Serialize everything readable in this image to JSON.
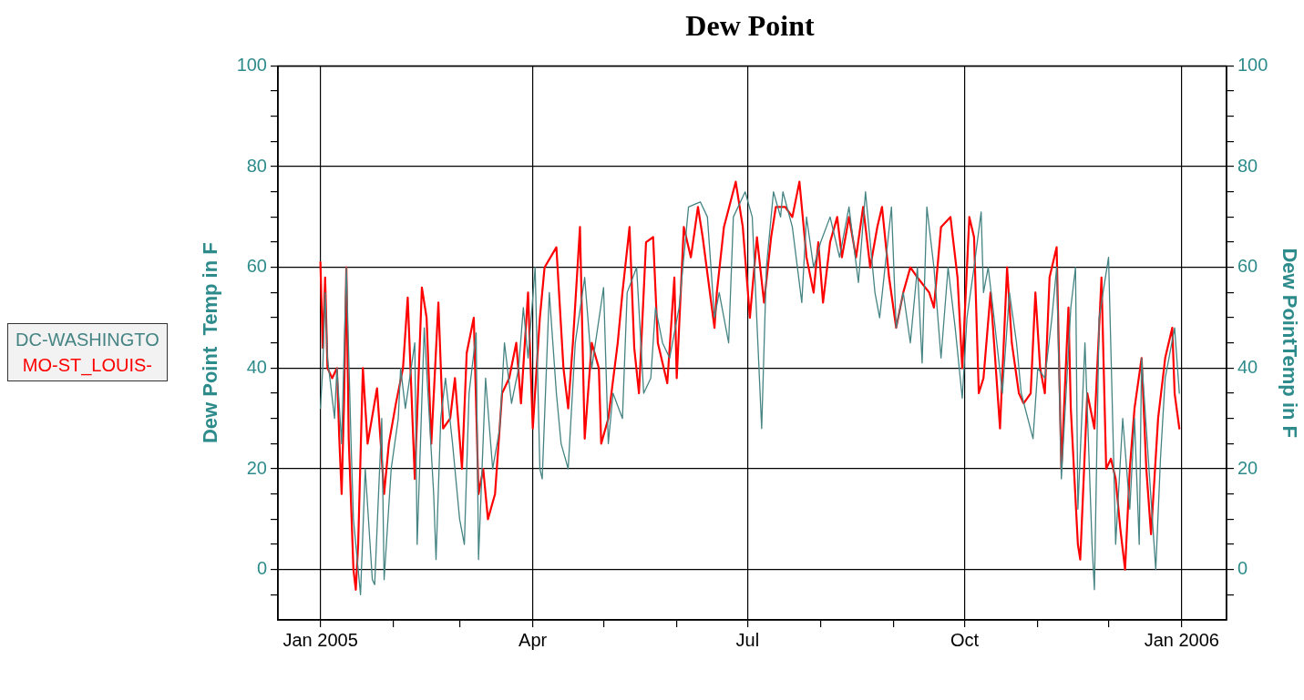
{
  "chart_data": {
    "type": "line",
    "title": "Dew Point",
    "ylabel": "Dew Point  Temp in F",
    "y2label": "Dew PointTemp in F",
    "xlim": [
      "2004-12-14",
      "2006-01-20"
    ],
    "xticks": [
      {
        "value": "2005-01-01",
        "label": "Jan 2005"
      },
      {
        "value": "2005-02-01",
        "label": null
      },
      {
        "value": "2005-03-01",
        "label": null
      },
      {
        "value": "2005-04-01",
        "label": "Apr"
      },
      {
        "value": "2005-05-01",
        "label": null
      },
      {
        "value": "2005-06-01",
        "label": null
      },
      {
        "value": "2005-07-01",
        "label": "Jul"
      },
      {
        "value": "2005-08-01",
        "label": null
      },
      {
        "value": "2005-09-01",
        "label": null
      },
      {
        "value": "2005-10-01",
        "label": "Oct"
      },
      {
        "value": "2005-11-01",
        "label": null
      },
      {
        "value": "2005-12-01",
        "label": null
      },
      {
        "value": "2006-01-01",
        "label": "Jan 2006"
      }
    ],
    "ylim": [
      -10,
      100
    ],
    "yticks": [
      {
        "value": -5,
        "label": null
      },
      0,
      {
        "value": 5,
        "label": null
      },
      {
        "value": 10,
        "label": null
      },
      {
        "value": 15,
        "label": null
      },
      20,
      {
        "value": 25,
        "label": null
      },
      {
        "value": 30,
        "label": null
      },
      {
        "value": 35,
        "label": null
      },
      40,
      {
        "value": 45,
        "label": null
      },
      {
        "value": 50,
        "label": null
      },
      {
        "value": 55,
        "label": null
      },
      60,
      {
        "value": 65,
        "label": null
      },
      {
        "value": 70,
        "label": null
      },
      {
        "value": 75,
        "label": null
      },
      80,
      {
        "value": 85,
        "label": null
      },
      {
        "value": 90,
        "label": null
      },
      {
        "value": 95,
        "label": null
      },
      100
    ],
    "y2lim": [
      -10,
      100
    ],
    "y2ticks": [
      {
        "value": -5,
        "label": null
      },
      0,
      {
        "value": 5,
        "label": null
      },
      {
        "value": 10,
        "label": null
      },
      {
        "value": 15,
        "label": null
      },
      20,
      {
        "value": 25,
        "label": null
      },
      {
        "value": 30,
        "label": null
      },
      {
        "value": 35,
        "label": null
      },
      40,
      {
        "value": 45,
        "label": null
      },
      {
        "value": 50,
        "label": null
      },
      {
        "value": 55,
        "label": null
      },
      60,
      {
        "value": 65,
        "label": null
      },
      {
        "value": 70,
        "label": null
      },
      {
        "value": 75,
        "label": null
      },
      80,
      {
        "value": 85,
        "label": null
      },
      {
        "value": 90,
        "label": null
      },
      {
        "value": 95,
        "label": null
      },
      100
    ],
    "grid": true,
    "legend": "left",
    "marker": "none",
    "series": [
      {
        "name": "DC-WASHINGTO",
        "color": "#468484",
        "x": [
          "2005-01-01",
          "2005-01-02",
          "2005-01-03",
          "2005-01-04",
          "2005-01-07",
          "2005-01-08",
          "2005-01-10",
          "2005-01-12",
          "2005-01-14",
          "2005-01-15",
          "2005-01-18",
          "2005-01-20",
          "2005-01-23",
          "2005-01-24",
          "2005-01-27",
          "2005-01-28",
          "2005-01-31",
          "2005-02-03",
          "2005-02-04",
          "2005-02-06",
          "2005-02-10",
          "2005-02-11",
          "2005-02-14",
          "2005-02-18",
          "2005-02-19",
          "2005-02-21",
          "2005-02-23",
          "2005-02-26",
          "2005-03-01",
          "2005-03-03",
          "2005-03-05",
          "2005-03-08",
          "2005-03-09",
          "2005-03-12",
          "2005-03-15",
          "2005-03-18",
          "2005-03-20",
          "2005-03-23",
          "2005-03-26",
          "2005-03-28",
          "2005-03-30",
          "2005-04-02",
          "2005-04-04",
          "2005-04-05",
          "2005-04-08",
          "2005-04-11",
          "2005-04-13",
          "2005-04-16",
          "2005-04-19",
          "2005-04-23",
          "2005-04-26",
          "2005-05-01",
          "2005-05-03",
          "2005-05-05",
          "2005-05-09",
          "2005-05-11",
          "2005-05-15",
          "2005-05-18",
          "2005-05-21",
          "2005-05-23",
          "2005-05-26",
          "2005-05-29",
          "2005-06-02",
          "2005-06-06",
          "2005-06-11",
          "2005-06-14",
          "2005-06-17",
          "2005-06-19",
          "2005-06-23",
          "2005-06-25",
          "2005-06-30",
          "2005-07-03",
          "2005-07-07",
          "2005-07-09",
          "2005-07-12",
          "2005-07-15",
          "2005-07-16",
          "2005-07-20",
          "2005-07-24",
          "2005-07-26",
          "2005-07-29",
          "2005-08-01",
          "2005-08-05",
          "2005-08-09",
          "2005-08-13",
          "2005-08-17",
          "2005-08-20",
          "2005-08-24",
          "2005-08-26",
          "2005-08-31",
          "2005-09-02",
          "2005-09-05",
          "2005-09-08",
          "2005-09-11",
          "2005-09-13",
          "2005-09-15",
          "2005-09-18",
          "2005-09-21",
          "2005-09-24",
          "2005-09-27",
          "2005-09-30",
          "2005-10-02",
          "2005-10-05",
          "2005-10-08",
          "2005-10-09",
          "2005-10-11",
          "2005-10-13",
          "2005-10-17",
          "2005-10-20",
          "2005-10-23",
          "2005-10-25",
          "2005-10-30",
          "2005-11-01",
          "2005-11-04",
          "2005-11-07",
          "2005-11-09",
          "2005-11-11",
          "2005-11-15",
          "2005-11-17",
          "2005-11-18",
          "2005-11-21",
          "2005-11-24",
          "2005-11-25",
          "2005-11-27",
          "2005-12-01",
          "2005-12-03",
          "2005-12-04",
          "2005-12-07",
          "2005-12-10",
          "2005-12-12",
          "2005-12-14",
          "2005-12-15",
          "2005-12-17",
          "2005-12-21",
          "2005-12-23",
          "2005-12-25",
          "2005-12-29",
          "2005-12-31"
        ],
        "values": [
          32,
          40,
          55,
          42,
          30,
          40,
          25,
          60,
          25,
          10,
          -5,
          20,
          -2,
          -3,
          30,
          -2,
          20,
          30,
          40,
          32,
          45,
          5,
          48,
          15,
          2,
          30,
          38,
          25,
          10,
          5,
          35,
          47,
          2,
          38,
          20,
          28,
          45,
          33,
          40,
          52,
          42,
          60,
          20,
          18,
          55,
          35,
          25,
          20,
          45,
          58,
          40,
          56,
          25,
          35,
          30,
          55,
          60,
          35,
          38,
          52,
          45,
          42,
          52,
          72,
          73,
          70,
          50,
          55,
          45,
          70,
          75,
          70,
          28,
          60,
          75,
          70,
          75,
          68,
          53,
          70,
          60,
          65,
          70,
          62,
          72,
          57,
          75,
          55,
          50,
          72,
          48,
          55,
          45,
          60,
          41,
          72,
          60,
          42,
          60,
          48,
          34,
          50,
          60,
          71,
          55,
          60,
          52,
          35,
          55,
          45,
          35,
          26,
          40,
          38,
          50,
          60,
          18,
          52,
          60,
          12,
          45,
          5,
          -4,
          50,
          62,
          25,
          5,
          30,
          12,
          30,
          5,
          42,
          28,
          0,
          22,
          38,
          48,
          35
        ]
      },
      {
        "name": "MO-ST_LOUIS-",
        "color": "#ff0000",
        "x": [
          "2005-01-01",
          "2005-01-02",
          "2005-01-03",
          "2005-01-04",
          "2005-01-06",
          "2005-01-08",
          "2005-01-09",
          "2005-01-10",
          "2005-01-11",
          "2005-01-12",
          "2005-01-13",
          "2005-01-15",
          "2005-01-16",
          "2005-01-17",
          "2005-01-19",
          "2005-01-21",
          "2005-01-25",
          "2005-01-28",
          "2005-01-30",
          "2005-02-02",
          "2005-02-05",
          "2005-02-07",
          "2005-02-10",
          "2005-02-13",
          "2005-02-15",
          "2005-02-17",
          "2005-02-20",
          "2005-02-22",
          "2005-02-25",
          "2005-02-27",
          "2005-03-02",
          "2005-03-04",
          "2005-03-07",
          "2005-03-09",
          "2005-03-11",
          "2005-03-13",
          "2005-03-16",
          "2005-03-19",
          "2005-03-22",
          "2005-03-25",
          "2005-03-27",
          "2005-03-30",
          "2005-04-01",
          "2005-04-04",
          "2005-04-06",
          "2005-04-11",
          "2005-04-14",
          "2005-04-16",
          "2005-04-18",
          "2005-04-21",
          "2005-04-23",
          "2005-04-26",
          "2005-04-29",
          "2005-04-30",
          "2005-05-03",
          "2005-05-07",
          "2005-05-09",
          "2005-05-12",
          "2005-05-14",
          "2005-05-16",
          "2005-05-19",
          "2005-05-22",
          "2005-05-24",
          "2005-05-28",
          "2005-05-31",
          "2005-06-01",
          "2005-06-03",
          "2005-06-04",
          "2005-06-07",
          "2005-06-10",
          "2005-06-12",
          "2005-06-17",
          "2005-06-18",
          "2005-06-21",
          "2005-06-26",
          "2005-06-29",
          "2005-07-02",
          "2005-07-05",
          "2005-07-08",
          "2005-07-11",
          "2005-07-13",
          "2005-07-17",
          "2005-07-20",
          "2005-07-23",
          "2005-07-26",
          "2005-07-29",
          "2005-07-31",
          "2005-08-02",
          "2005-08-05",
          "2005-08-08",
          "2005-08-10",
          "2005-08-13",
          "2005-08-16",
          "2005-08-19",
          "2005-08-22",
          "2005-08-25",
          "2005-08-27",
          "2005-08-30",
          "2005-09-02",
          "2005-09-05",
          "2005-09-08",
          "2005-09-11",
          "2005-09-16",
          "2005-09-18",
          "2005-09-21",
          "2005-09-25",
          "2005-09-28",
          "2005-09-30",
          "2005-10-03",
          "2005-10-05",
          "2005-10-07",
          "2005-10-09",
          "2005-10-12",
          "2005-10-16",
          "2005-10-19",
          "2005-10-21",
          "2005-10-24",
          "2005-10-26",
          "2005-10-29",
          "2005-10-31",
          "2005-11-02",
          "2005-11-04",
          "2005-11-06",
          "2005-11-09",
          "2005-11-11",
          "2005-11-14",
          "2005-11-15",
          "2005-11-18",
          "2005-11-19",
          "2005-11-22",
          "2005-11-25",
          "2005-11-28",
          "2005-11-30",
          "2005-12-02",
          "2005-12-04",
          "2005-12-06",
          "2005-12-08",
          "2005-12-10",
          "2005-12-12",
          "2005-12-15",
          "2005-12-17",
          "2005-12-19",
          "2005-12-22",
          "2005-12-25",
          "2005-12-28",
          "2005-12-29",
          "2005-12-31"
        ],
        "values": [
          61,
          44,
          58,
          40,
          38,
          40,
          26,
          15,
          33,
          60,
          26,
          0,
          -4,
          5,
          40,
          25,
          36,
          15,
          25,
          33,
          40,
          54,
          18,
          56,
          50,
          25,
          53,
          28,
          30,
          38,
          20,
          43,
          50,
          15,
          20,
          10,
          15,
          35,
          38,
          45,
          33,
          55,
          28,
          50,
          60,
          64,
          40,
          32,
          45,
          68,
          26,
          45,
          40,
          25,
          30,
          45,
          55,
          68,
          44,
          35,
          65,
          66,
          45,
          37,
          58,
          38,
          58,
          68,
          62,
          72,
          66,
          48,
          55,
          68,
          77,
          68,
          50,
          66,
          53,
          66,
          72,
          72,
          70,
          77,
          62,
          55,
          65,
          53,
          65,
          70,
          62,
          70,
          62,
          72,
          60,
          68,
          72,
          58,
          48,
          55,
          60,
          58,
          55,
          52,
          68,
          70,
          58,
          40,
          70,
          66,
          35,
          38,
          55,
          28,
          60,
          45,
          35,
          33,
          35,
          55,
          40,
          35,
          58,
          64,
          20,
          52,
          32,
          5,
          2,
          35,
          28,
          58,
          20,
          22,
          18,
          8,
          0,
          20,
          32,
          42,
          20,
          7,
          30,
          42,
          48,
          35,
          28
        ]
      }
    ]
  }
}
